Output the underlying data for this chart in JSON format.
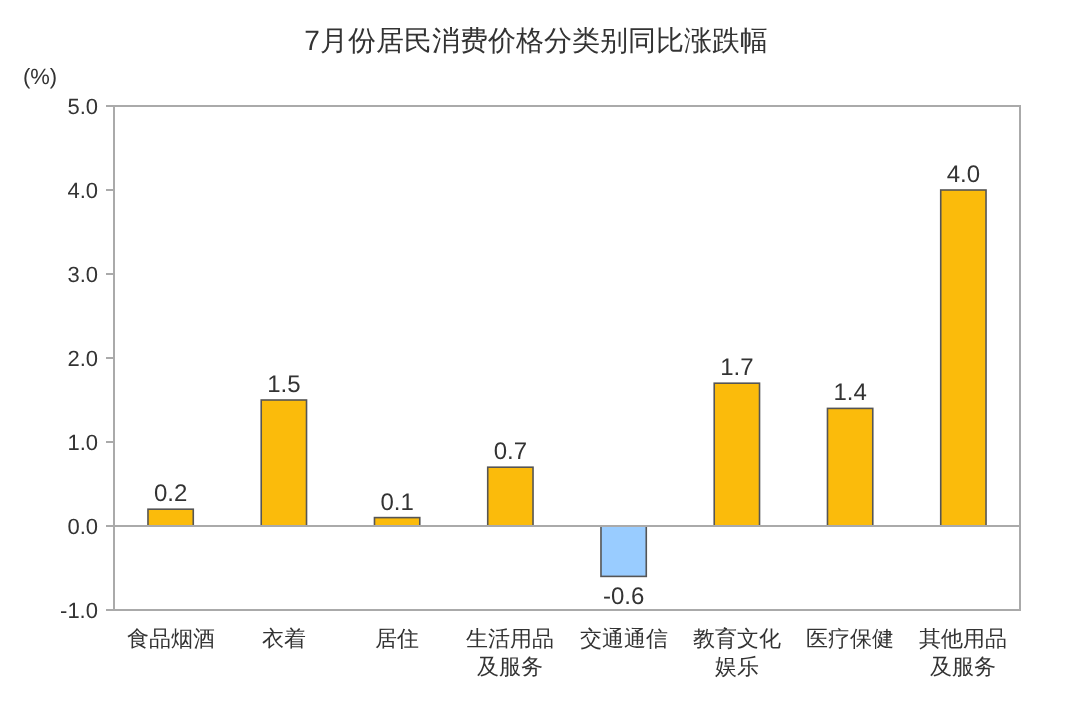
{
  "chart_data": {
    "type": "bar",
    "title": "7月份居民消费价格分类别同比涨跌幅",
    "ylabel": "(%)",
    "categories": [
      "食品烟酒",
      "衣着",
      "居住",
      "生活用品及服务",
      "交通通信",
      "教育文化娱乐",
      "医疗保健",
      "其他用品及服务"
    ],
    "values": [
      0.2,
      1.5,
      0.1,
      0.7,
      -0.6,
      1.7,
      1.4,
      4.0
    ],
    "colors": [
      "#fbbb0b",
      "#fbbb0b",
      "#fbbb0b",
      "#fbbb0b",
      "#99ccff",
      "#fbbb0b",
      "#fbbb0b",
      "#fbbb0b"
    ],
    "ylim": [
      -1,
      5
    ],
    "yticks": [
      {
        "value": -1,
        "label": "-1.0"
      },
      {
        "value": 0,
        "label": "0.0"
      },
      {
        "value": 1,
        "label": "1.0"
      },
      {
        "value": 2,
        "label": "2.0"
      },
      {
        "value": 3,
        "label": "3.0"
      },
      {
        "value": 4,
        "label": "4.0"
      },
      {
        "value": 5,
        "label": "5.0"
      }
    ],
    "value_labels": [
      "0.2",
      "1.5",
      "0.1",
      "0.7",
      "-0.6",
      "1.7",
      "1.4",
      "4.0"
    ],
    "data_labels": true
  }
}
